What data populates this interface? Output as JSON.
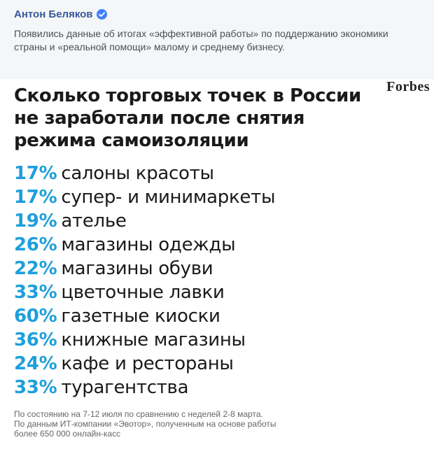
{
  "post": {
    "author": "Антон Беляков",
    "verified_icon": "verified-badge-icon",
    "text": "Появились данные об итогах «эффективной работы» по поддержанию экономики страны и «реальной помощи» малому и среднему бизнесу."
  },
  "card": {
    "brand": "Forbes",
    "headline": "Сколько торговых точек в России не заработали после снятия режима самоизоляции",
    "accent_color": "#1e9fdc",
    "items": [
      {
        "value": "17%",
        "label": "салоны красоты"
      },
      {
        "value": "17%",
        "label": "супер- и минимаркеты"
      },
      {
        "value": "19%",
        "label": "ателье"
      },
      {
        "value": "26%",
        "label": "магазины одежды"
      },
      {
        "value": "22%",
        "label": "магазины обуви"
      },
      {
        "value": "33%",
        "label": "цветочные лавки"
      },
      {
        "value": "60%",
        "label": "газетные киоски"
      },
      {
        "value": "36%",
        "label": "книжные магазины"
      },
      {
        "value": "24%",
        "label": "кафе и рестораны"
      },
      {
        "value": "33%",
        "label": "турагентства"
      }
    ],
    "footnote": [
      "По состоянию на 7-12 июля по сравнению с неделей 2-8 марта.",
      "По данным ИТ-компании «Эвотор», полученным на основе работы",
      "более 650 000 онлайн-касс"
    ]
  }
}
